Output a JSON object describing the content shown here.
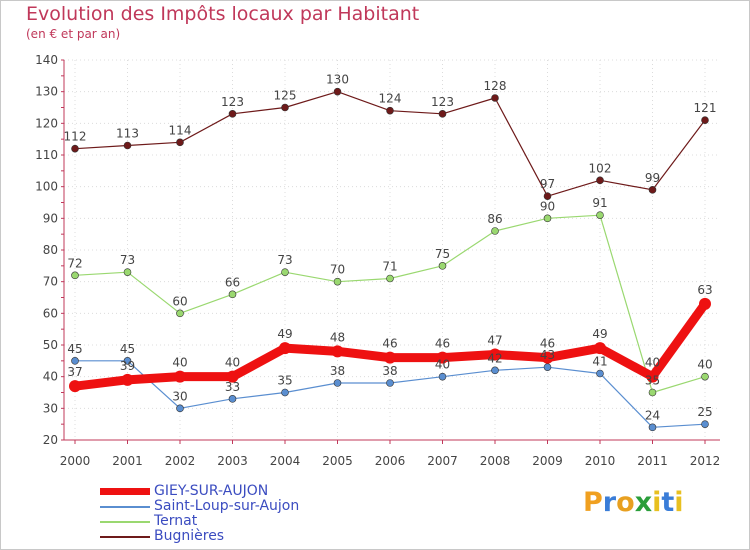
{
  "title": "Evolution des Impôts locaux par Habitant",
  "subtitle": "(en € et par an)",
  "logo": {
    "letters": [
      "P",
      "r",
      "o",
      "x",
      "i",
      "t",
      "i"
    ],
    "colors": [
      "#f0a020",
      "#3a7dd8",
      "#e8a020",
      "#2a9e3a",
      "#e8c020",
      "#3a7dd8",
      "#e8c020"
    ]
  },
  "chart_data": {
    "type": "line",
    "x": [
      "2000",
      "2001",
      "2002",
      "2003",
      "2004",
      "2005",
      "2006",
      "2007",
      "2008",
      "2009",
      "2010",
      "2011",
      "2012"
    ],
    "ylim": [
      20,
      140
    ],
    "yticks": [
      20,
      30,
      40,
      50,
      60,
      70,
      80,
      90,
      100,
      110,
      120,
      130,
      140
    ],
    "grid": true,
    "series": [
      {
        "name": "GIEY-SUR-AUJON",
        "color": "#ee1111",
        "values": [
          37,
          39,
          40,
          40,
          49,
          48,
          46,
          46,
          47,
          46,
          49,
          40,
          63
        ]
      },
      {
        "name": "Saint-Loup-sur-Aujon",
        "color": "#5a8ed0",
        "values": [
          45,
          45,
          30,
          33,
          35,
          38,
          38,
          40,
          42,
          43,
          41,
          24,
          25
        ]
      },
      {
        "name": "Ternat",
        "color": "#9ad870",
        "values": [
          72,
          73,
          60,
          66,
          73,
          70,
          71,
          75,
          86,
          90,
          91,
          35,
          40
        ]
      },
      {
        "name": "Bugnières",
        "color": "#6e1a1a",
        "values": [
          112,
          113,
          114,
          123,
          125,
          130,
          124,
          123,
          128,
          97,
          102,
          99,
          121
        ]
      }
    ]
  }
}
